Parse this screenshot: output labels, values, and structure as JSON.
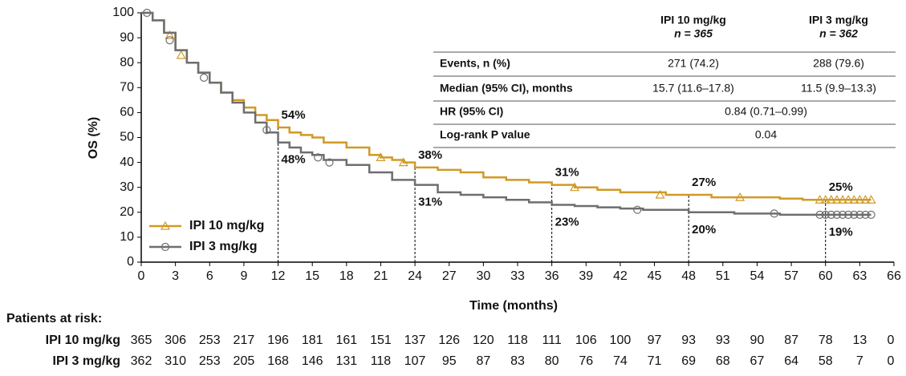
{
  "chart_data": {
    "type": "km",
    "x_label": "Time (months)",
    "y_label": "OS (%)",
    "xlim": [
      0,
      66
    ],
    "xticks": [
      0,
      3,
      6,
      9,
      12,
      15,
      18,
      21,
      24,
      27,
      30,
      33,
      36,
      39,
      42,
      45,
      48,
      51,
      54,
      57,
      60,
      63,
      66
    ],
    "ylim": [
      0,
      100
    ],
    "yticks": [
      0,
      10,
      20,
      30,
      40,
      50,
      60,
      70,
      80,
      90,
      100
    ],
    "legend": "lower left",
    "series": [
      {
        "name": "IPI 10 mg/kg",
        "color": "#d09a26",
        "marker": "triangle",
        "x": [
          0,
          1,
          2,
          3,
          4,
          5,
          6,
          7,
          8,
          9,
          10,
          11,
          12,
          13,
          14,
          15,
          16,
          18,
          20,
          21,
          22,
          23,
          24,
          26,
          28,
          30,
          32,
          34,
          36,
          38,
          40,
          42,
          44,
          46,
          48,
          50,
          52,
          54,
          56,
          58,
          60,
          64
        ],
        "values": [
          100,
          97,
          92,
          85,
          80,
          76,
          72,
          68,
          65,
          62,
          59,
          57,
          54,
          52,
          51,
          50,
          48,
          46,
          43,
          42,
          41,
          40,
          38,
          37,
          36,
          34,
          33,
          32,
          31,
          30,
          29,
          28,
          28,
          27,
          27,
          26,
          26,
          26,
          25.5,
          25,
          25,
          25
        ],
        "censored_x": [
          2.5,
          3.5,
          21,
          23,
          38,
          45.5,
          52.5,
          59.5,
          60,
          60.5,
          61,
          61.5,
          62,
          62.5,
          63,
          63.5,
          64
        ],
        "censored_values": [
          91,
          83,
          42,
          40,
          30,
          27,
          26,
          25,
          25,
          25,
          25,
          25,
          25,
          25,
          25,
          25,
          25
        ]
      },
      {
        "name": "IPI 3 mg/kg",
        "color": "#6e6e6e",
        "marker": "circle",
        "x": [
          0,
          1,
          2,
          3,
          4,
          5,
          6,
          7,
          8,
          9,
          10,
          11,
          12,
          13,
          14,
          15,
          16,
          18,
          20,
          22,
          24,
          26,
          28,
          30,
          32,
          34,
          36,
          38,
          40,
          42,
          44,
          46,
          48,
          50,
          52,
          54,
          56,
          60,
          64
        ],
        "values": [
          100,
          97,
          92,
          85,
          80,
          76,
          72,
          68,
          64,
          60,
          56,
          52,
          48,
          46,
          44,
          43,
          41,
          39,
          36,
          33,
          31,
          28,
          27,
          26,
          25,
          24,
          23,
          22.5,
          22,
          21.5,
          21,
          21,
          20,
          20,
          19.5,
          19.5,
          19,
          19,
          19
        ],
        "censored_x": [
          0.5,
          2.5,
          5.5,
          11,
          15.5,
          16.5,
          43.5,
          55.5,
          59.5,
          60,
          60.5,
          61,
          61.5,
          62,
          62.5,
          63,
          63.5,
          64
        ],
        "censored_values": [
          100,
          89,
          74,
          53,
          42,
          40,
          21,
          19.5,
          19,
          19,
          19,
          19,
          19,
          19,
          19,
          19,
          19,
          19
        ]
      }
    ],
    "landmarks": [
      {
        "x": 12,
        "values": [
          54,
          48
        ],
        "value_labels": [
          "54%",
          "48%"
        ]
      },
      {
        "x": 24,
        "values": [
          38,
          31
        ],
        "value_labels": [
          "38%",
          "31%"
        ]
      },
      {
        "x": 36,
        "values": [
          31,
          23
        ],
        "value_labels": [
          "31%",
          "23%"
        ]
      },
      {
        "x": 48,
        "values": [
          27,
          20
        ],
        "value_labels": [
          "27%",
          "20%"
        ]
      },
      {
        "x": 60,
        "values": [
          25,
          19
        ],
        "value_labels": [
          "25%",
          "19%"
        ]
      }
    ]
  },
  "summary_table": {
    "columns": [
      [
        "IPI 10 mg/kg",
        "n = 365"
      ],
      [
        "IPI 3 mg/kg",
        "n = 362"
      ]
    ],
    "rows": [
      {
        "label": "Events, n (%)",
        "cells": [
          "271 (74.2)",
          "288 (79.6)"
        ]
      },
      {
        "label": "Median (95% CI), months",
        "cells": [
          "15.7 (11.6–17.8)",
          "11.5 (9.9–13.3)"
        ]
      },
      {
        "label": "HR (95% CI)",
        "cells": [
          "0.84 (0.71–0.99)"
        ]
      },
      {
        "label": "Log-rank P value",
        "cells": [
          "0.04"
        ]
      }
    ]
  },
  "risk_table": {
    "title": "Patients at risk:",
    "rows": [
      {
        "name": "IPI 10 mg/kg",
        "counts": [
          365,
          306,
          253,
          217,
          196,
          181,
          161,
          151,
          137,
          126,
          120,
          118,
          111,
          106,
          100,
          97,
          93,
          93,
          90,
          87,
          78,
          13,
          0
        ]
      },
      {
        "name": "IPI 3 mg/kg",
        "counts": [
          362,
          310,
          253,
          205,
          168,
          146,
          131,
          118,
          107,
          95,
          87,
          83,
          80,
          76,
          74,
          71,
          69,
          68,
          67,
          64,
          58,
          7,
          0
        ]
      }
    ]
  }
}
